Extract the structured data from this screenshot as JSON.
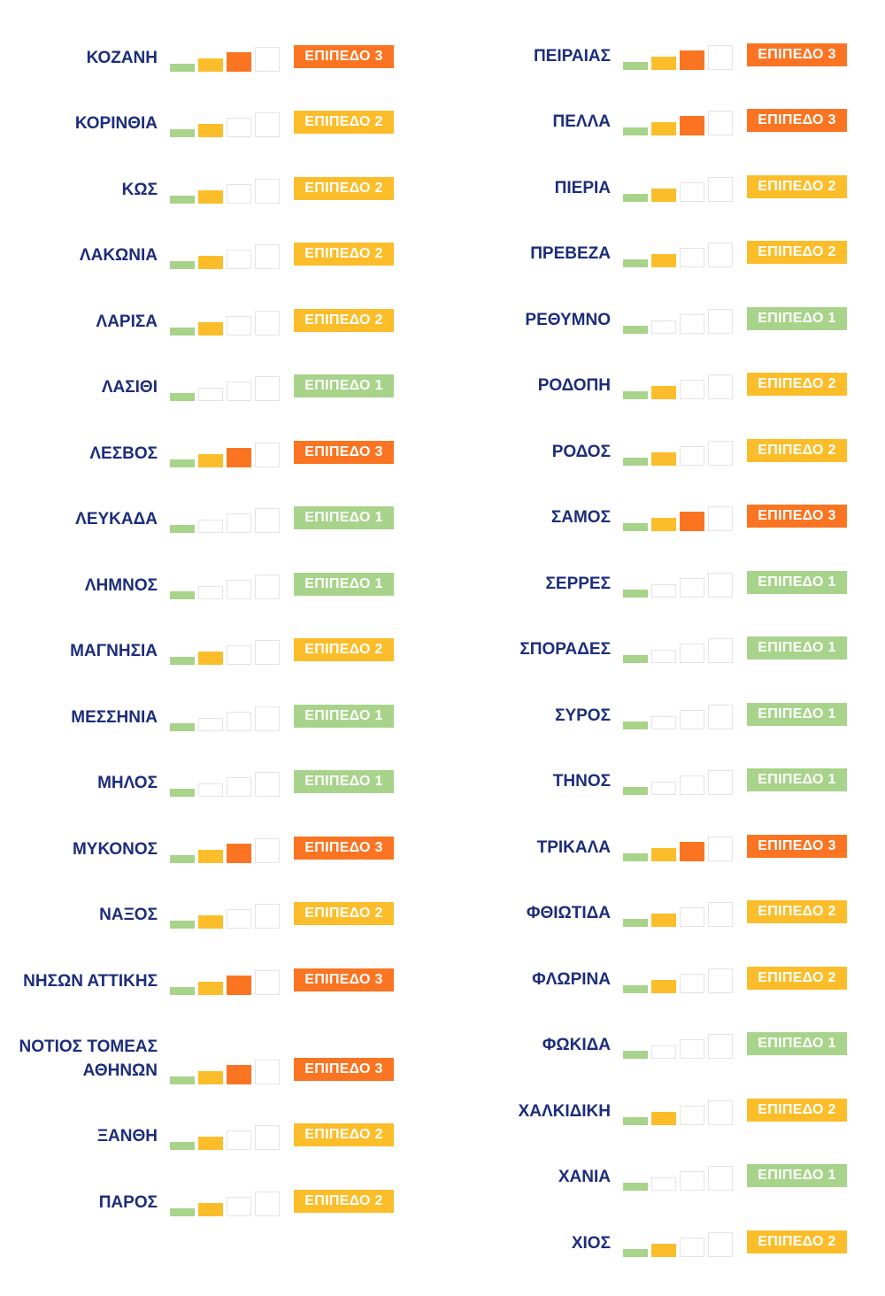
{
  "colors": {
    "level1": "#a8d38a",
    "level2": "#fbbd2a",
    "level3": "#fa7422",
    "name_text": "#1c2d7b",
    "meter_seg1": "#a8d38a",
    "meter_seg2": "#fbbd2a",
    "meter_seg3": "#fa7422"
  },
  "left_column": [
    {
      "name": "ΚΟΖΑΝΗ",
      "level": 3,
      "badge": "ΕΠΙΠΕΔΟ 3"
    },
    {
      "name": "ΚΟΡΙΝΘΙΑ",
      "level": 2,
      "badge": "ΕΠΙΠΕΔΟ 2"
    },
    {
      "name": "ΚΩΣ",
      "level": 2,
      "badge": "ΕΠΙΠΕΔΟ 2"
    },
    {
      "name": "ΛΑΚΩΝΙΑ",
      "level": 2,
      "badge": "ΕΠΙΠΕΔΟ 2"
    },
    {
      "name": "ΛΑΡΙΣΑ",
      "level": 2,
      "badge": "ΕΠΙΠΕΔΟ 2"
    },
    {
      "name": "ΛΑΣΙΘΙ",
      "level": 1,
      "badge": "ΕΠΙΠΕΔΟ 1"
    },
    {
      "name": "ΛΕΣΒΟΣ",
      "level": 3,
      "badge": "ΕΠΙΠΕΔΟ 3"
    },
    {
      "name": "ΛΕΥΚΑΔΑ",
      "level": 1,
      "badge": "ΕΠΙΠΕΔΟ 1"
    },
    {
      "name": "ΛΗΜΝΟΣ",
      "level": 1,
      "badge": "ΕΠΙΠΕΔΟ 1"
    },
    {
      "name": "ΜΑΓΝΗΣΙΑ",
      "level": 2,
      "badge": "ΕΠΙΠΕΔΟ 2"
    },
    {
      "name": "ΜΕΣΣΗΝΙΑ",
      "level": 1,
      "badge": "ΕΠΙΠΕΔΟ 1"
    },
    {
      "name": "ΜΗΛΟΣ",
      "level": 1,
      "badge": "ΕΠΙΠΕΔΟ 1"
    },
    {
      "name": "ΜΥΚΟΝΟΣ",
      "level": 3,
      "badge": "ΕΠΙΠΕΔΟ 3"
    },
    {
      "name": "ΝΑΞΟΣ",
      "level": 2,
      "badge": "ΕΠΙΠΕΔΟ 2"
    },
    {
      "name": "ΝΗΣΩΝ ΑΤΤΙΚΗΣ",
      "level": 3,
      "badge": "ΕΠΙΠΕΔΟ 3"
    },
    {
      "name": "ΝΟΤΙΟΣ ΤΟΜΕΑΣ ΑΘΗΝΩΝ",
      "level": 3,
      "badge": "ΕΠΙΠΕΔΟ 3"
    },
    {
      "name": "ΞΑΝΘΗ",
      "level": 2,
      "badge": "ΕΠΙΠΕΔΟ 2"
    },
    {
      "name": "ΠΑΡΟΣ",
      "level": 2,
      "badge": "ΕΠΙΠΕΔΟ 2"
    }
  ],
  "right_column": [
    {
      "name": "ΠΕΙΡΑΙΑΣ",
      "level": 3,
      "badge": "ΕΠΙΠΕΔΟ 3"
    },
    {
      "name": "ΠΕΛΛΑ",
      "level": 3,
      "badge": "ΕΠΙΠΕΔΟ 3"
    },
    {
      "name": "ΠΙΕΡΙΑ",
      "level": 2,
      "badge": "ΕΠΙΠΕΔΟ 2"
    },
    {
      "name": "ΠΡΕΒΕΖΑ",
      "level": 2,
      "badge": "ΕΠΙΠΕΔΟ 2"
    },
    {
      "name": "ΡΕΘΥΜΝΟ",
      "level": 1,
      "badge": "ΕΠΙΠΕΔΟ 1"
    },
    {
      "name": "ΡΟΔΟΠΗ",
      "level": 2,
      "badge": "ΕΠΙΠΕΔΟ 2"
    },
    {
      "name": "ΡΟΔΟΣ",
      "level": 2,
      "badge": "ΕΠΙΠΕΔΟ 2"
    },
    {
      "name": "ΣΑΜΟΣ",
      "level": 3,
      "badge": "ΕΠΙΠΕΔΟ 3"
    },
    {
      "name": "ΣΕΡΡΕΣ",
      "level": 1,
      "badge": "ΕΠΙΠΕΔΟ 1"
    },
    {
      "name": "ΣΠΟΡΑΔΕΣ",
      "level": 1,
      "badge": "ΕΠΙΠΕΔΟ 1"
    },
    {
      "name": "ΣΥΡΟΣ",
      "level": 1,
      "badge": "ΕΠΙΠΕΔΟ 1"
    },
    {
      "name": "ΤΗΝΟΣ",
      "level": 1,
      "badge": "ΕΠΙΠΕΔΟ 1"
    },
    {
      "name": "ΤΡΙΚΑΛΑ",
      "level": 3,
      "badge": "ΕΠΙΠΕΔΟ 3"
    },
    {
      "name": "ΦΘΙΩΤΙΔΑ",
      "level": 2,
      "badge": "ΕΠΙΠΕΔΟ 2"
    },
    {
      "name": "ΦΛΩΡΙΝΑ",
      "level": 2,
      "badge": "ΕΠΙΠΕΔΟ 2"
    },
    {
      "name": "ΦΩΚΙΔΑ",
      "level": 1,
      "badge": "ΕΠΙΠΕΔΟ 1"
    },
    {
      "name": "ΧΑΛΚΙΔΙΚΗ",
      "level": 2,
      "badge": "ΕΠΙΠΕΔΟ 2"
    },
    {
      "name": "ΧΑΝΙΑ",
      "level": 1,
      "badge": "ΕΠΙΠΕΔΟ 1"
    },
    {
      "name": "ΧΙΟΣ",
      "level": 2,
      "badge": "ΕΠΙΠΕΔΟ 2"
    }
  ]
}
